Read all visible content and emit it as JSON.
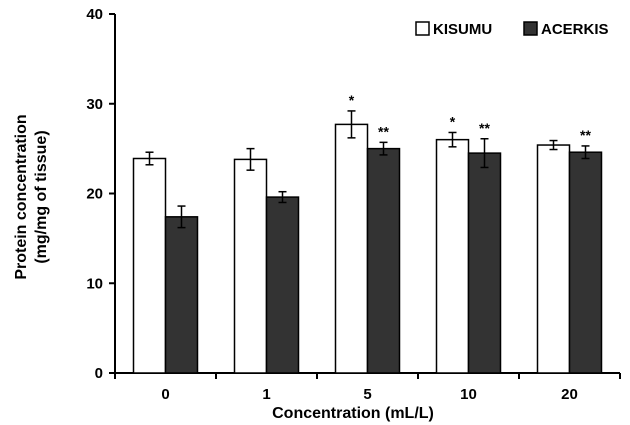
{
  "chart_data": {
    "type": "bar",
    "categories": [
      "0",
      "1",
      "5",
      "10",
      "20"
    ],
    "series": [
      {
        "name": "KISUMU",
        "values": [
          23.9,
          23.8,
          27.7,
          26.0,
          25.4
        ],
        "errors": [
          0.7,
          1.2,
          1.5,
          0.8,
          0.5
        ],
        "significance": [
          "",
          "",
          "*",
          "*",
          ""
        ],
        "color": "#ffffff"
      },
      {
        "name": "ACERKIS",
        "values": [
          17.4,
          19.6,
          25.0,
          24.5,
          24.6
        ],
        "errors": [
          1.2,
          0.6,
          0.7,
          1.6,
          0.7
        ],
        "significance": [
          "",
          "",
          "**",
          "**",
          "**"
        ],
        "color": "#333333"
      }
    ],
    "xlabel": "Concentration (mL/L)",
    "ylabel_line1": "Protein concentration",
    "ylabel_line2": "(mg/mg of tissue)",
    "ylim": [
      0,
      40
    ],
    "yticks": [
      0,
      10,
      20,
      30,
      40
    ],
    "grid": false,
    "legend": "top-right"
  }
}
